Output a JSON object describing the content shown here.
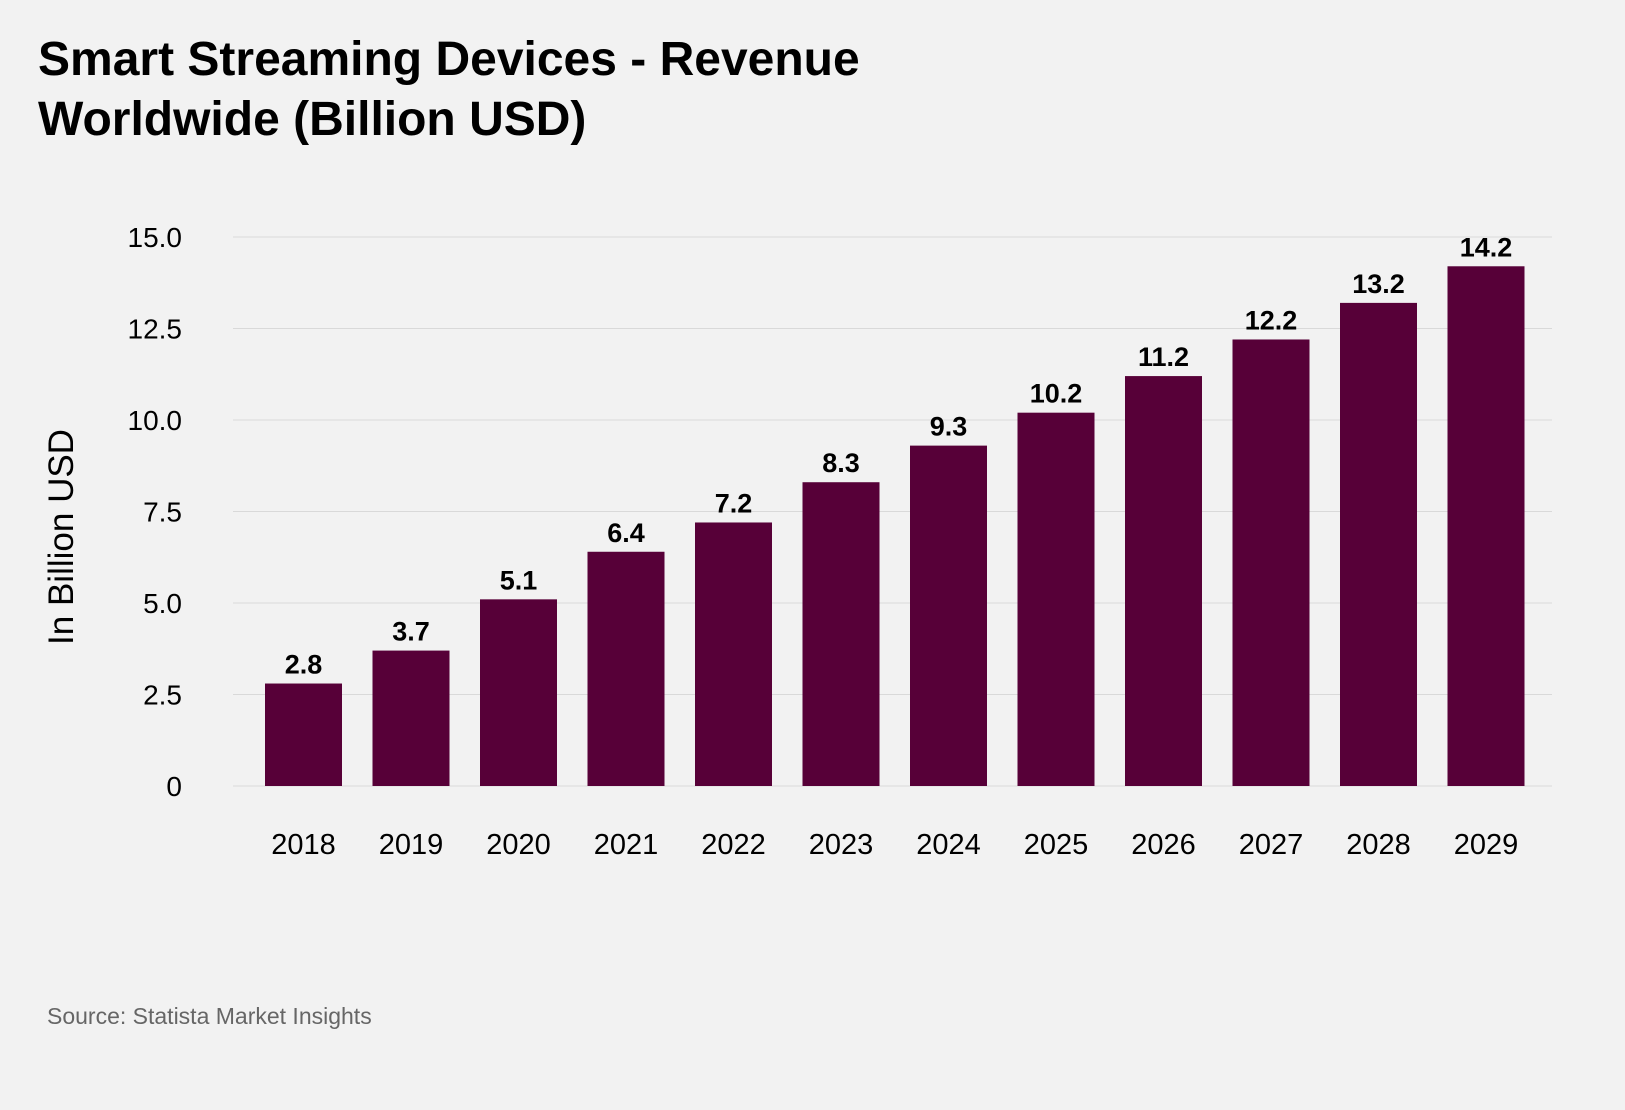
{
  "chart_data": {
    "type": "bar",
    "title": "Smart Streaming Devices - Revenue Worldwide (Billion USD)",
    "ylabel": "In Billion USD",
    "xlabel": "",
    "categories": [
      "2018",
      "2019",
      "2020",
      "2021",
      "2022",
      "2023",
      "2024",
      "2025",
      "2026",
      "2027",
      "2028",
      "2029"
    ],
    "values": [
      2.8,
      3.7,
      5.1,
      6.4,
      7.2,
      8.3,
      9.3,
      10.2,
      11.2,
      12.2,
      13.2,
      14.2
    ],
    "value_labels": [
      "2.8",
      "3.7",
      "5.1",
      "6.4",
      "7.2",
      "8.3",
      "9.3",
      "10.2",
      "11.2",
      "12.2",
      "13.2",
      "14.2"
    ],
    "ylim": [
      0,
      15
    ],
    "yticks": [
      0,
      2.5,
      5,
      7.5,
      10,
      12.5,
      15
    ],
    "ytick_labels": [
      "0",
      "2.5",
      "5.0",
      "7.5",
      "10.0",
      "12.5",
      "15.0"
    ],
    "grid": true,
    "bar_color": "#570038",
    "grid_color": "#d9d9d9"
  },
  "source": "Source: Statista Market Insights"
}
